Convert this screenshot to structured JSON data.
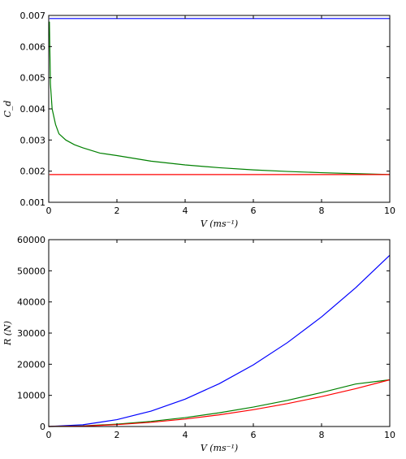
{
  "chart_data": [
    {
      "type": "line",
      "title": "",
      "xlabel": "V (ms⁻¹)",
      "ylabel": "C_d",
      "xlim": [
        0,
        10
      ],
      "ylim": [
        0.001,
        0.007
      ],
      "xticks": [
        "0",
        "2",
        "4",
        "6",
        "8",
        "10"
      ],
      "yticks": [
        "0.001",
        "0.002",
        "0.003",
        "0.004",
        "0.005",
        "0.006",
        "0.007"
      ],
      "grid": false,
      "series": [
        {
          "color": "#0000ff",
          "x": [
            0.02,
            10
          ],
          "y": [
            0.0069,
            0.0069
          ]
        },
        {
          "color": "#008000",
          "x": [
            0.02,
            0.05,
            0.1,
            0.2,
            0.3,
            0.5,
            0.75,
            1,
            1.5,
            2,
            3,
            4,
            5,
            6,
            7,
            8,
            9,
            10
          ],
          "y": [
            0.0068,
            0.0048,
            0.004,
            0.0035,
            0.0032,
            0.003,
            0.00285,
            0.00275,
            0.00258,
            0.0025,
            0.00232,
            0.0022,
            0.00211,
            0.00204,
            0.00199,
            0.00195,
            0.00192,
            0.00189
          ]
        },
        {
          "color": "#ff0000",
          "x": [
            0.02,
            10
          ],
          "y": [
            0.00189,
            0.00189
          ]
        }
      ]
    },
    {
      "type": "line",
      "title": "",
      "xlabel": "V (ms⁻¹)",
      "ylabel": "R (N)",
      "xlim": [
        0,
        10
      ],
      "ylim": [
        0,
        60000
      ],
      "xticks": [
        "0",
        "2",
        "4",
        "6",
        "8",
        "10"
      ],
      "yticks": [
        "0",
        "10000",
        "20000",
        "30000",
        "40000",
        "50000",
        "60000"
      ],
      "grid": false,
      "series": [
        {
          "color": "#0000ff",
          "x": [
            0,
            1,
            2,
            3,
            4,
            5,
            6,
            7,
            8,
            9,
            10
          ],
          "y": [
            0,
            550,
            2200,
            4950,
            8800,
            13750,
            19800,
            26950,
            35200,
            44550,
            55000
          ]
        },
        {
          "color": "#008000",
          "x": [
            0,
            1,
            2,
            3,
            4,
            5,
            6,
            7,
            8,
            9,
            10
          ],
          "y": [
            0,
            200,
            760,
            1650,
            2850,
            4400,
            6250,
            8400,
            10900,
            13650,
            15000
          ]
        },
        {
          "color": "#ff0000",
          "x": [
            0,
            1,
            2,
            3,
            4,
            5,
            6,
            7,
            8,
            9,
            10
          ],
          "y": [
            0,
            150,
            600,
            1350,
            2400,
            3750,
            5400,
            7350,
            9600,
            12150,
            15000
          ]
        }
      ]
    }
  ]
}
